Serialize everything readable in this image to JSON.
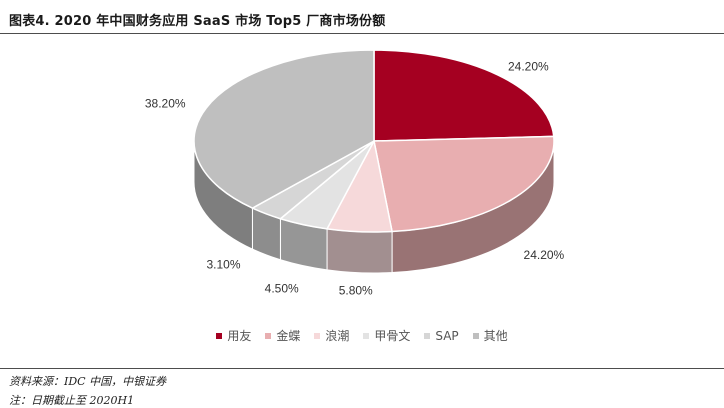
{
  "header": {
    "title": "图表4. 2020 年中国财务应用 SaaS 市场 Top5 厂商市场份额"
  },
  "chart_data": {
    "type": "pie",
    "style": "3d",
    "title": "图表4. 2020 年中国财务应用 SaaS 市场 Top5 厂商市场份额",
    "categories": [
      "用友",
      "金蝶",
      "浪潮",
      "甲骨文",
      "SAP",
      "其他"
    ],
    "values": [
      24.2,
      24.2,
      5.8,
      4.5,
      3.1,
      38.2
    ],
    "data_labels": [
      "24.20%",
      "24.20%",
      "5.80%",
      "4.50%",
      "3.10%",
      "38.20%"
    ],
    "colors": [
      "#a50021",
      "#e8aeb0",
      "#f6d9da",
      "#e3e3e3",
      "#d6d6d6",
      "#bfbfbf"
    ],
    "legend_position": "bottom"
  },
  "footer": {
    "source": "资料来源：IDC 中国，中银证券",
    "note": "注：日期截止至 2020H1"
  }
}
